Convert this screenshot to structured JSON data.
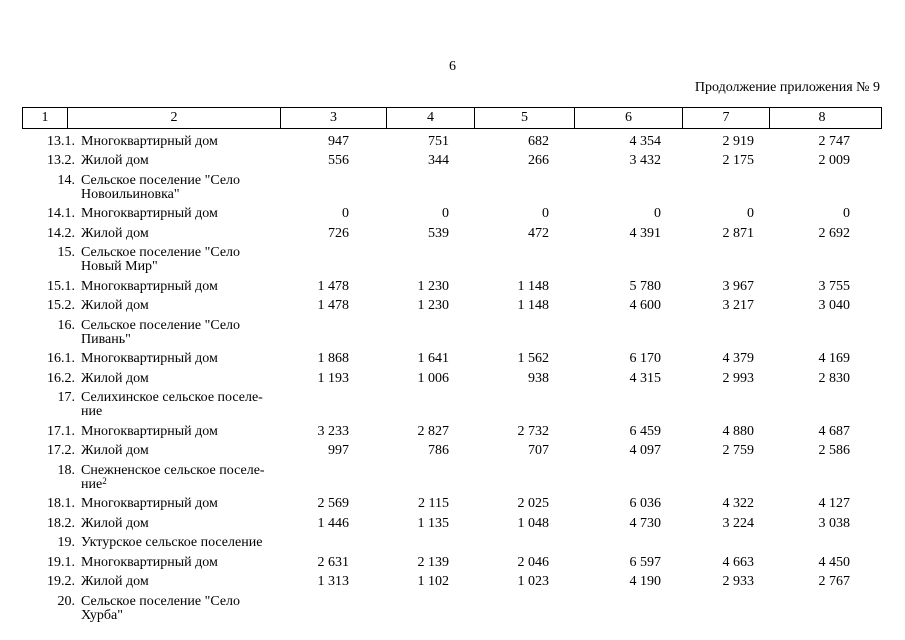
{
  "page": {
    "number": "6",
    "continuation_note": "Продолжение приложения № 9"
  },
  "table": {
    "header_cols": [
      "1",
      "2",
      "3",
      "4",
      "5",
      "6",
      "7",
      "8"
    ],
    "rows": [
      {
        "num": "13.1.",
        "name": "Многоквартирный дом",
        "sup": "",
        "values": [
          "947",
          "751",
          "682",
          "4 354",
          "2 919",
          "2 747"
        ]
      },
      {
        "num": "13.2.",
        "name": "Жилой дом",
        "sup": "",
        "values": [
          "556",
          "344",
          "266",
          "3 432",
          "2 175",
          "2 009"
        ]
      },
      {
        "num": "14.",
        "name": "Сельское поселение \"Село\nНовоильиновка\"",
        "sup": "",
        "values": [
          "",
          "",
          "",
          "",
          "",
          ""
        ]
      },
      {
        "num": "14.1.",
        "name": "Многоквартирный дом",
        "sup": "",
        "values": [
          "0",
          "0",
          "0",
          "0",
          "0",
          "0"
        ]
      },
      {
        "num": "14.2.",
        "name": "Жилой дом",
        "sup": "",
        "values": [
          "726",
          "539",
          "472",
          "4 391",
          "2 871",
          "2 692"
        ]
      },
      {
        "num": "15.",
        "name": "Сельское поселение \"Село\nНовый Мир\"",
        "sup": "",
        "values": [
          "",
          "",
          "",
          "",
          "",
          ""
        ]
      },
      {
        "num": "15.1.",
        "name": "Многоквартирный дом",
        "sup": "",
        "values": [
          "1 478",
          "1 230",
          "1 148",
          "5 780",
          "3 967",
          "3 755"
        ]
      },
      {
        "num": "15.2.",
        "name": "Жилой дом",
        "sup": "",
        "values": [
          "1 478",
          "1 230",
          "1 148",
          "4 600",
          "3 217",
          "3 040"
        ]
      },
      {
        "num": "16.",
        "name": "Сельское поселение \"Село\nПивань\"",
        "sup": "",
        "values": [
          "",
          "",
          "",
          "",
          "",
          ""
        ]
      },
      {
        "num": "16.1.",
        "name": "Многоквартирный дом",
        "sup": "",
        "values": [
          "1 868",
          "1 641",
          "1 562",
          "6 170",
          "4 379",
          "4 169"
        ]
      },
      {
        "num": "16.2.",
        "name": "Жилой дом",
        "sup": "",
        "values": [
          "1 193",
          "1 006",
          "938",
          "4 315",
          "2 993",
          "2 830"
        ]
      },
      {
        "num": "17.",
        "name": "Селихинское сельское поселе-\nние",
        "sup": "",
        "values": [
          "",
          "",
          "",
          "",
          "",
          ""
        ]
      },
      {
        "num": "17.1.",
        "name": "Многоквартирный дом",
        "sup": "",
        "values": [
          "3 233",
          "2 827",
          "2 732",
          "6 459",
          "4 880",
          "4 687"
        ]
      },
      {
        "num": "17.2.",
        "name": "Жилой дом",
        "sup": "",
        "values": [
          "997",
          "786",
          "707",
          "4 097",
          "2 759",
          "2 586"
        ]
      },
      {
        "num": "18.",
        "name": "Снежненское сельское поселе-\nние",
        "sup": "2",
        "values": [
          "",
          "",
          "",
          "",
          "",
          ""
        ]
      },
      {
        "num": "18.1.",
        "name": "Многоквартирный дом",
        "sup": "",
        "values": [
          "2 569",
          "2 115",
          "2 025",
          "6 036",
          "4 322",
          "4 127"
        ]
      },
      {
        "num": "18.2.",
        "name": "Жилой дом",
        "sup": "",
        "values": [
          "1 446",
          "1 135",
          "1 048",
          "4 730",
          "3 224",
          "3 038"
        ]
      },
      {
        "num": "19.",
        "name": "Уктурское сельское поселение",
        "sup": "",
        "values": [
          "",
          "",
          "",
          "",
          "",
          ""
        ]
      },
      {
        "num": "19.1.",
        "name": "Многоквартирный дом",
        "sup": "",
        "values": [
          "2 631",
          "2 139",
          "2 046",
          "6 597",
          "4 663",
          "4 450"
        ]
      },
      {
        "num": "19.2.",
        "name": "Жилой дом",
        "sup": "",
        "values": [
          "1 313",
          "1 102",
          "1 023",
          "4 190",
          "2 933",
          "2 767"
        ]
      },
      {
        "num": "20.",
        "name": "Сельское поселение \"Село\nХурба\"",
        "sup": "",
        "values": [
          "",
          "",
          "",
          "",
          "",
          ""
        ]
      }
    ]
  }
}
